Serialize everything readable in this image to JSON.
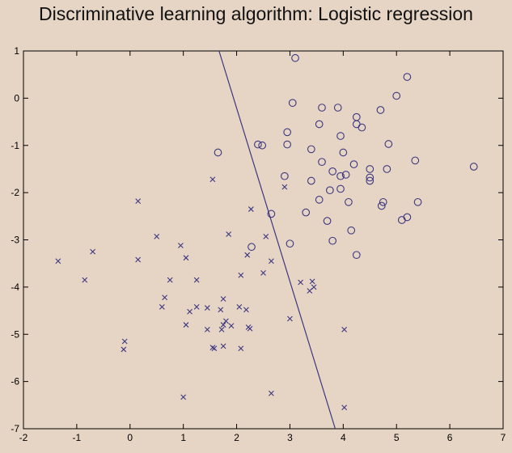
{
  "title": "Discriminative learning algorithm: Logistic regression",
  "colors": {
    "background": "#e6d5c5",
    "marker": "#3b3680",
    "boundary": "#3b3680",
    "axis": "#000000"
  },
  "chart_data": {
    "type": "scatter",
    "title": "",
    "xlabel": "",
    "ylabel": "",
    "xlim": [
      -2,
      7
    ],
    "ylim": [
      -7,
      1
    ],
    "xticks": [
      -2,
      -1,
      0,
      1,
      2,
      3,
      4,
      5,
      6,
      7
    ],
    "yticks": [
      1,
      0,
      -1,
      -2,
      -3,
      -4,
      -5,
      -6,
      -7
    ],
    "grid": false,
    "series": [
      {
        "marker": "circle",
        "points": [
          [
            3.1,
            0.85
          ],
          [
            5.2,
            0.45
          ],
          [
            5.0,
            0.05
          ],
          [
            3.05,
            -0.1
          ],
          [
            3.6,
            -0.2
          ],
          [
            3.9,
            -0.2
          ],
          [
            4.7,
            -0.25
          ],
          [
            4.25,
            -0.4
          ],
          [
            4.25,
            -0.55
          ],
          [
            4.35,
            -0.62
          ],
          [
            3.55,
            -0.55
          ],
          [
            2.95,
            -0.72
          ],
          [
            3.95,
            -0.8
          ],
          [
            2.4,
            -0.98
          ],
          [
            2.48,
            -1.0
          ],
          [
            2.95,
            -0.98
          ],
          [
            4.85,
            -0.97
          ],
          [
            1.65,
            -1.15
          ],
          [
            3.4,
            -1.08
          ],
          [
            4.0,
            -1.15
          ],
          [
            3.6,
            -1.35
          ],
          [
            5.35,
            -1.32
          ],
          [
            4.2,
            -1.4
          ],
          [
            4.5,
            -1.5
          ],
          [
            4.82,
            -1.5
          ],
          [
            6.45,
            -1.45
          ],
          [
            3.8,
            -1.55
          ],
          [
            4.05,
            -1.62
          ],
          [
            3.95,
            -1.65
          ],
          [
            2.9,
            -1.65
          ],
          [
            4.5,
            -1.68
          ],
          [
            4.5,
            -1.75
          ],
          [
            3.4,
            -1.75
          ],
          [
            3.95,
            -1.92
          ],
          [
            3.75,
            -1.95
          ],
          [
            3.55,
            -2.15
          ],
          [
            4.1,
            -2.2
          ],
          [
            4.75,
            -2.2
          ],
          [
            4.72,
            -2.28
          ],
          [
            5.4,
            -2.2
          ],
          [
            2.65,
            -2.45
          ],
          [
            3.3,
            -2.42
          ],
          [
            3.7,
            -2.6
          ],
          [
            5.2,
            -2.52
          ],
          [
            5.1,
            -2.58
          ],
          [
            4.15,
            -2.8
          ],
          [
            3.8,
            -3.02
          ],
          [
            3.0,
            -3.08
          ],
          [
            2.28,
            -3.15
          ],
          [
            4.25,
            -3.32
          ]
        ]
      },
      {
        "marker": "x",
        "points": [
          [
            1.55,
            -1.72
          ],
          [
            0.15,
            -2.18
          ],
          [
            2.9,
            -1.88
          ],
          [
            2.27,
            -2.35
          ],
          [
            1.85,
            -2.88
          ],
          [
            0.5,
            -2.93
          ],
          [
            2.55,
            -2.93
          ],
          [
            0.95,
            -3.12
          ],
          [
            -0.7,
            -3.25
          ],
          [
            2.2,
            -3.32
          ],
          [
            1.05,
            -3.38
          ],
          [
            0.15,
            -3.42
          ],
          [
            -1.35,
            -3.45
          ],
          [
            2.65,
            -3.45
          ],
          [
            2.5,
            -3.7
          ],
          [
            2.08,
            -3.75
          ],
          [
            0.75,
            -3.85
          ],
          [
            1.25,
            -3.85
          ],
          [
            -0.85,
            -3.85
          ],
          [
            3.2,
            -3.9
          ],
          [
            3.42,
            -3.88
          ],
          [
            3.45,
            -4.0
          ],
          [
            3.37,
            -4.08
          ],
          [
            0.65,
            -4.22
          ],
          [
            1.75,
            -4.25
          ],
          [
            0.6,
            -4.42
          ],
          [
            1.25,
            -4.42
          ],
          [
            1.45,
            -4.44
          ],
          [
            2.05,
            -4.42
          ],
          [
            1.7,
            -4.48
          ],
          [
            2.18,
            -4.48
          ],
          [
            1.12,
            -4.52
          ],
          [
            3.0,
            -4.67
          ],
          [
            1.8,
            -4.72
          ],
          [
            1.05,
            -4.8
          ],
          [
            1.75,
            -4.8
          ],
          [
            1.9,
            -4.82
          ],
          [
            1.72,
            -4.9
          ],
          [
            1.45,
            -4.9
          ],
          [
            2.25,
            -4.88
          ],
          [
            2.22,
            -4.85
          ],
          [
            4.02,
            -4.9
          ],
          [
            -0.1,
            -5.15
          ],
          [
            1.55,
            -5.28
          ],
          [
            1.58,
            -5.3
          ],
          [
            1.75,
            -5.25
          ],
          [
            2.08,
            -5.3
          ],
          [
            -0.12,
            -5.32
          ],
          [
            2.65,
            -6.25
          ],
          [
            1.0,
            -6.33
          ],
          [
            4.02,
            -6.55
          ]
        ]
      }
    ],
    "decision_boundary": {
      "x": [
        1.67,
        3.85
      ],
      "y": [
        1.0,
        -7.0
      ]
    }
  }
}
